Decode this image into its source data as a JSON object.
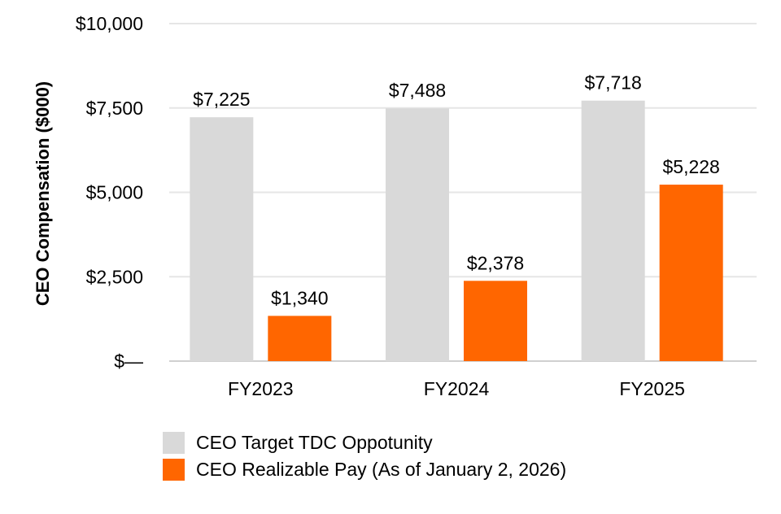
{
  "chart_data": {
    "type": "bar",
    "title": "",
    "xlabel": "",
    "ylabel": "CEO Compensation ($000)",
    "categories": [
      "FY2023",
      "FY2024",
      "FY2025"
    ],
    "ylim": [
      0,
      10000
    ],
    "yticks": [
      0,
      2500,
      5000,
      7500,
      10000
    ],
    "ytick_labels": [
      "$—",
      "$2,500",
      "$5,000",
      "$7,500",
      "$10,000"
    ],
    "grid": true,
    "legend_position": "bottom-left",
    "series": [
      {
        "name": "CEO Target TDC Oppotunity",
        "color": "#d9d9d9",
        "values": [
          7225,
          7488,
          7718
        ],
        "labels": [
          "$7,225",
          "$7,488",
          "$7,718"
        ]
      },
      {
        "name": "CEO Realizable Pay (As of January 2, 2026)",
        "color": "#ff6600",
        "values": [
          1340,
          2378,
          5228
        ],
        "labels": [
          "$1,340",
          "$2,378",
          "$5,228"
        ]
      }
    ]
  }
}
